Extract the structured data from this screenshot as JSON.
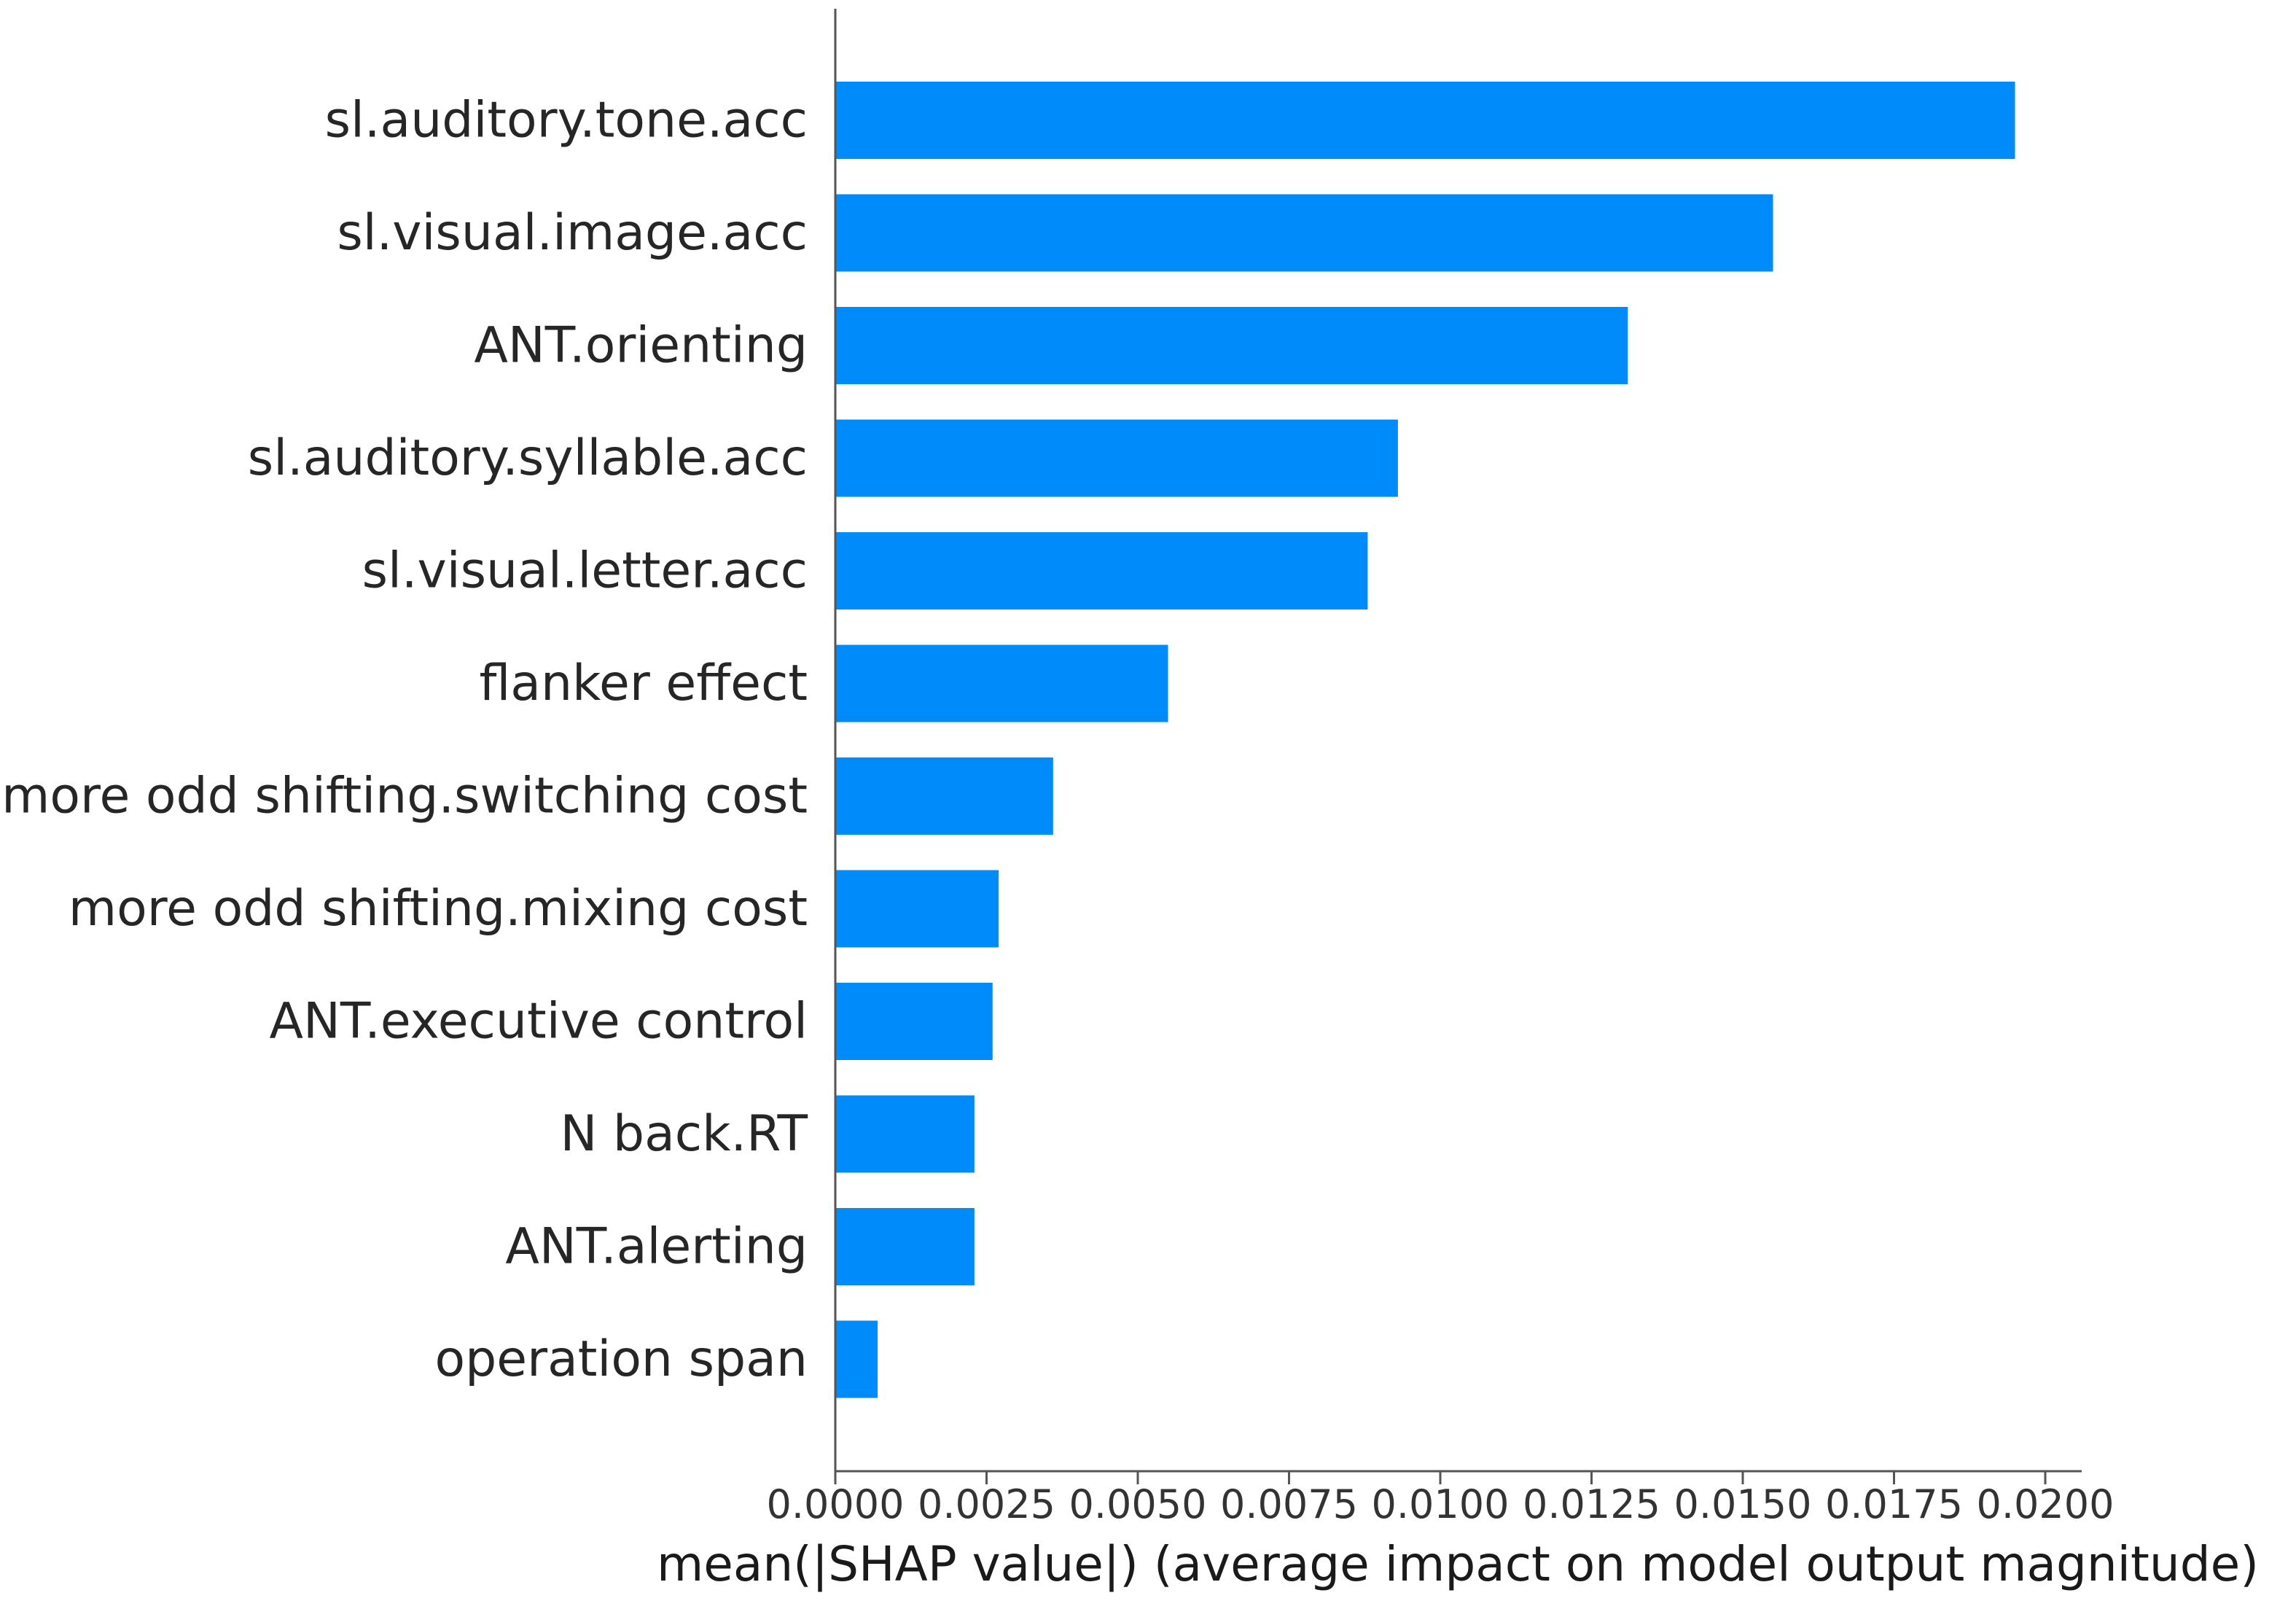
{
  "chart_data": {
    "type": "bar",
    "orientation": "horizontal",
    "title": "",
    "xlabel": "mean(|SHAP value|) (average impact on model output magnitude)",
    "ylabel": "",
    "xlim": [
      0,
      0.0205
    ],
    "grid": false,
    "bar_color": "#008bfb",
    "categories": [
      "sl.auditory.tone.acc",
      "sl.visual.image.acc",
      "ANT.orienting",
      "sl.auditory.syllable.acc",
      "sl.visual.letter.acc",
      "flanker effect",
      "more odd shifting.switching cost",
      "more odd shifting.mixing cost",
      "ANT.executive control",
      "N back.RT",
      "ANT.alerting",
      "operation span"
    ],
    "values": [
      0.0195,
      0.0155,
      0.0131,
      0.0093,
      0.0088,
      0.0055,
      0.0036,
      0.0027,
      0.0026,
      0.0023,
      0.0023,
      0.0007
    ],
    "xticks": [
      0.0,
      0.0025,
      0.005,
      0.0075,
      0.01,
      0.0125,
      0.015,
      0.0175,
      0.02
    ],
    "xtick_labels": [
      "0.0000",
      "0.0025",
      "0.0050",
      "0.0075",
      "0.0100",
      "0.0125",
      "0.0150",
      "0.0175",
      "0.0200"
    ]
  }
}
